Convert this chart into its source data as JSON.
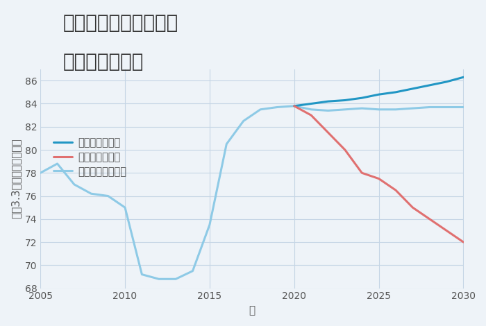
{
  "title_line1": "大阪府茨木市野々宮の",
  "title_line2": "土地の価格推移",
  "xlabel": "年",
  "ylabel": "平（3.3㎡）単価（万円）",
  "ylim": [
    68,
    87
  ],
  "xlim": [
    2005,
    2030
  ],
  "yticks": [
    68,
    70,
    72,
    74,
    76,
    78,
    80,
    82,
    84,
    86
  ],
  "xticks": [
    2005,
    2010,
    2015,
    2020,
    2025,
    2030
  ],
  "bg_color": "#eef3f8",
  "plot_bg_color": "#eef3f8",
  "grid_color": "#c5d5e5",
  "normal_scenario": {
    "x": [
      2005,
      2006,
      2007,
      2008,
      2009,
      2010,
      2011,
      2012,
      2013,
      2014,
      2015,
      2016,
      2017,
      2018,
      2019,
      2020,
      2021,
      2022,
      2023,
      2024,
      2025,
      2026,
      2027,
      2028,
      2029,
      2030
    ],
    "y": [
      78.0,
      78.8,
      77.0,
      76.2,
      76.0,
      75.0,
      69.2,
      68.8,
      68.8,
      69.5,
      73.5,
      80.5,
      82.5,
      83.5,
      83.7,
      83.8,
      83.5,
      83.4,
      83.5,
      83.6,
      83.5,
      83.5,
      83.6,
      83.7,
      83.7,
      83.7
    ],
    "color": "#8ecae6",
    "linewidth": 2.2,
    "label": "ノーマルシナリオ"
  },
  "good_scenario": {
    "x": [
      2020,
      2021,
      2022,
      2023,
      2024,
      2025,
      2026,
      2027,
      2028,
      2029,
      2030
    ],
    "y": [
      83.8,
      84.0,
      84.2,
      84.3,
      84.5,
      84.8,
      85.0,
      85.3,
      85.6,
      85.9,
      86.3
    ],
    "color": "#2196c4",
    "linewidth": 2.2,
    "label": "グッドシナリオ"
  },
  "bad_scenario": {
    "x": [
      2020,
      2021,
      2022,
      2023,
      2024,
      2025,
      2026,
      2027,
      2028,
      2029,
      2030
    ],
    "y": [
      83.8,
      83.0,
      81.5,
      80.0,
      78.0,
      77.5,
      76.5,
      75.0,
      74.0,
      73.0,
      72.0
    ],
    "color": "#e07070",
    "linewidth": 2.2,
    "label": "バッドシナリオ"
  },
  "title_fontsize": 20,
  "axis_label_fontsize": 11,
  "tick_fontsize": 10,
  "legend_fontsize": 10.5
}
